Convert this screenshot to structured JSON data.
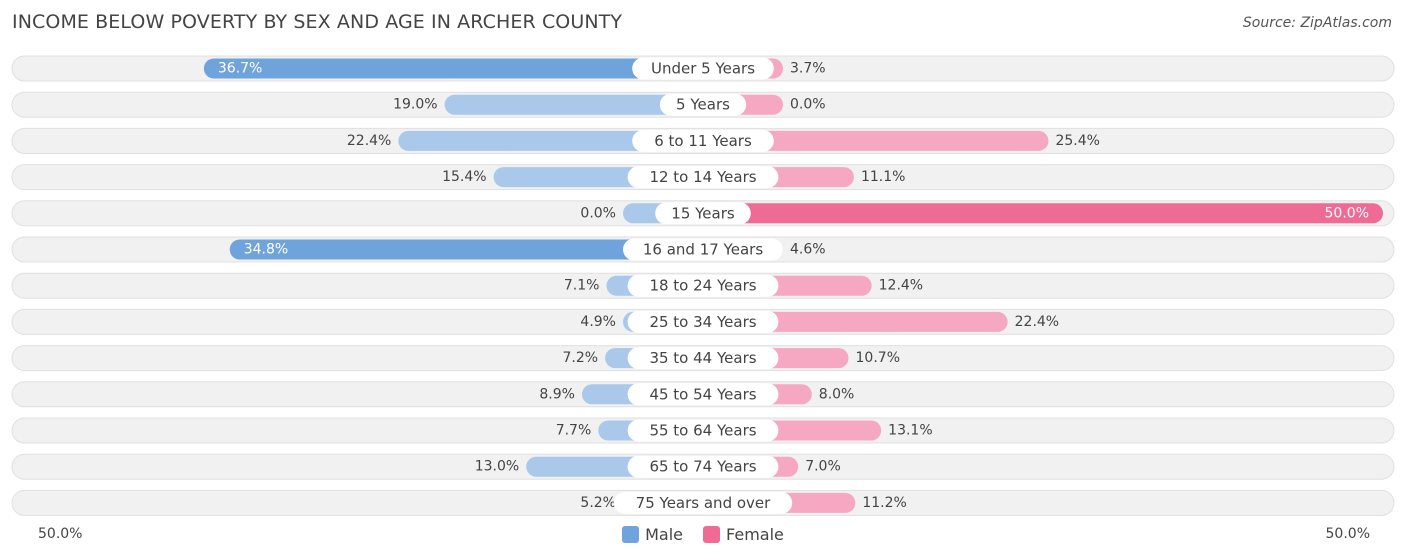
{
  "title": "INCOME BELOW POVERTY BY SEX AND AGE IN ARCHER COUNTY",
  "source": "Source: ZipAtlas.com",
  "colors": {
    "male": "#6fa3dc",
    "male_light": "#a9c8ea",
    "female": "#f06a96",
    "female_light": "#f6a8c2",
    "row_bg": "#f1f1f1",
    "row_border": "#e0e0e0"
  },
  "legend": {
    "male": "Male",
    "female": "Female"
  },
  "axis": {
    "left": "50.0%",
    "right": "50.0%"
  },
  "chart_data": {
    "type": "bar",
    "orientation": "horizontal-diverging",
    "title": "INCOME BELOW POVERTY BY SEX AND AGE IN ARCHER COUNTY",
    "xlim": [
      -50,
      50
    ],
    "categories": [
      "Under 5 Years",
      "5 Years",
      "6 to 11 Years",
      "12 to 14 Years",
      "15 Years",
      "16 and 17 Years",
      "18 to 24 Years",
      "25 to 34 Years",
      "35 to 44 Years",
      "45 to 54 Years",
      "55 to 64 Years",
      "65 to 74 Years",
      "75 Years and over"
    ],
    "series": [
      {
        "name": "Male",
        "values": [
          36.7,
          19.0,
          22.4,
          15.4,
          0.0,
          34.8,
          7.1,
          4.9,
          7.2,
          8.9,
          7.7,
          13.0,
          5.2
        ],
        "labels": [
          "36.7%",
          "19.0%",
          "22.4%",
          "15.4%",
          "0.0%",
          "34.8%",
          "7.1%",
          "4.9%",
          "7.2%",
          "8.9%",
          "7.7%",
          "13.0%",
          "5.2%"
        ]
      },
      {
        "name": "Female",
        "values": [
          3.7,
          0.0,
          25.4,
          11.1,
          50.0,
          4.6,
          12.4,
          22.4,
          10.7,
          8.0,
          13.1,
          7.0,
          11.2
        ],
        "labels": [
          "3.7%",
          "0.0%",
          "25.4%",
          "11.1%",
          "50.0%",
          "4.6%",
          "12.4%",
          "22.4%",
          "10.7%",
          "8.0%",
          "13.1%",
          "7.0%",
          "11.2%"
        ]
      }
    ],
    "legend_position": "bottom-center"
  }
}
